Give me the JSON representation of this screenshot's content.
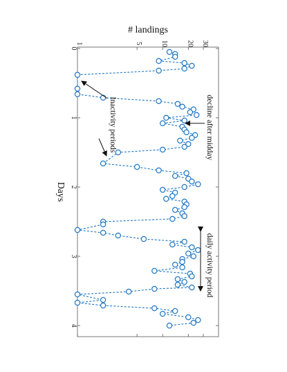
{
  "chart_data": {
    "type": "scatter",
    "orientation": "rotated-90",
    "xlabel": "Days",
    "ylabel": "# landings",
    "xlim": [
      0,
      4.15
    ],
    "ylim": [
      1,
      30
    ],
    "x_ticks": [
      0,
      1,
      2,
      3,
      4
    ],
    "y_ticks": [
      1,
      5,
      10,
      20,
      30
    ],
    "y_scale": "log",
    "marker": "open-circle",
    "line_style": "dashed",
    "colors": {
      "series": "#1f77c4",
      "marker_fill": "#ffffff",
      "axes": "#555555",
      "text": "#111111"
    },
    "points": [
      {
        "x": 0.05,
        "y": 12
      },
      {
        "x": 0.08,
        "y": 14
      },
      {
        "x": 0.12,
        "y": 14
      },
      {
        "x": 0.18,
        "y": 9
      },
      {
        "x": 0.21,
        "y": 18
      },
      {
        "x": 0.25,
        "y": 22
      },
      {
        "x": 0.29,
        "y": 18
      },
      {
        "x": 0.32,
        "y": 9
      },
      {
        "x": 0.38,
        "y": 1
      },
      {
        "x": 0.58,
        "y": 1
      },
      {
        "x": 0.66,
        "y": 1
      },
      {
        "x": 0.71,
        "y": 2
      },
      {
        "x": 0.76,
        "y": 9
      },
      {
        "x": 0.8,
        "y": 15
      },
      {
        "x": 0.84,
        "y": 17
      },
      {
        "x": 0.88,
        "y": 23
      },
      {
        "x": 0.92,
        "y": 21
      },
      {
        "x": 0.96,
        "y": 25
      },
      {
        "x": 1.0,
        "y": 11
      },
      {
        "x": 1.04,
        "y": 18
      },
      {
        "x": 1.08,
        "y": 10
      },
      {
        "x": 1.13,
        "y": 17
      },
      {
        "x": 1.17,
        "y": 18
      },
      {
        "x": 1.21,
        "y": 19
      },
      {
        "x": 1.25,
        "y": 24
      },
      {
        "x": 1.29,
        "y": 22
      },
      {
        "x": 1.33,
        "y": 16
      },
      {
        "x": 1.38,
        "y": 20
      },
      {
        "x": 1.42,
        "y": 18
      },
      {
        "x": 1.46,
        "y": 10
      },
      {
        "x": 1.5,
        "y": 3
      },
      {
        "x": 1.66,
        "y": 2
      },
      {
        "x": 1.71,
        "y": 5
      },
      {
        "x": 1.76,
        "y": 9
      },
      {
        "x": 1.8,
        "y": 19
      },
      {
        "x": 1.84,
        "y": 14
      },
      {
        "x": 1.88,
        "y": 20
      },
      {
        "x": 1.92,
        "y": 22
      },
      {
        "x": 1.96,
        "y": 26
      },
      {
        "x": 2.0,
        "y": 18
      },
      {
        "x": 2.04,
        "y": 10
      },
      {
        "x": 2.08,
        "y": 14
      },
      {
        "x": 2.13,
        "y": 13
      },
      {
        "x": 2.17,
        "y": 11
      },
      {
        "x": 2.21,
        "y": 18
      },
      {
        "x": 2.25,
        "y": 19
      },
      {
        "x": 2.29,
        "y": 18
      },
      {
        "x": 2.33,
        "y": 14
      },
      {
        "x": 2.38,
        "y": 17
      },
      {
        "x": 2.42,
        "y": 18
      },
      {
        "x": 2.46,
        "y": 13
      },
      {
        "x": 2.5,
        "y": 2
      },
      {
        "x": 2.54,
        "y": 2
      },
      {
        "x": 2.62,
        "y": 1
      },
      {
        "x": 2.66,
        "y": 2
      },
      {
        "x": 2.7,
        "y": 3
      },
      {
        "x": 2.75,
        "y": 6
      },
      {
        "x": 2.79,
        "y": 18
      },
      {
        "x": 2.83,
        "y": 13
      },
      {
        "x": 2.87,
        "y": 22
      },
      {
        "x": 2.91,
        "y": 26
      },
      {
        "x": 2.96,
        "y": 20
      },
      {
        "x": 3.0,
        "y": 23
      },
      {
        "x": 3.04,
        "y": 17
      },
      {
        "x": 3.08,
        "y": 17
      },
      {
        "x": 3.12,
        "y": 14
      },
      {
        "x": 3.16,
        "y": 17
      },
      {
        "x": 3.21,
        "y": 8
      },
      {
        "x": 3.25,
        "y": 21
      },
      {
        "x": 3.29,
        "y": 22
      },
      {
        "x": 3.33,
        "y": 15
      },
      {
        "x": 3.37,
        "y": 18
      },
      {
        "x": 3.41,
        "y": 15
      },
      {
        "x": 3.45,
        "y": 22
      },
      {
        "x": 3.47,
        "y": 8
      },
      {
        "x": 3.51,
        "y": 4
      },
      {
        "x": 3.55,
        "y": 1
      },
      {
        "x": 3.63,
        "y": 2
      },
      {
        "x": 3.67,
        "y": 1
      },
      {
        "x": 3.71,
        "y": 2
      },
      {
        "x": 3.75,
        "y": 8
      },
      {
        "x": 3.79,
        "y": 14
      },
      {
        "x": 3.83,
        "y": 10
      },
      {
        "x": 3.88,
        "y": 20
      },
      {
        "x": 3.92,
        "y": 26
      },
      {
        "x": 3.96,
        "y": 23
      },
      {
        "x": 4.0,
        "y": 12
      }
    ],
    "annotations": [
      {
        "text": "decline after midday"
      },
      {
        "text": "Inactivity periods"
      },
      {
        "text": "daily activity period"
      }
    ]
  }
}
